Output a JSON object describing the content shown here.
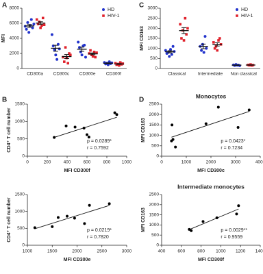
{
  "chart_data": [
    {
      "type": "dot",
      "panel_label": "A",
      "y_label": "MFI",
      "ylim": [
        0,
        8000
      ],
      "yticks": [
        0,
        2000,
        4000,
        6000,
        8000
      ],
      "legend": "upper right",
      "categories": [
        "CD300a",
        "CD300c",
        "CD300e",
        "CD300f"
      ],
      "series": [
        {
          "name": "HD",
          "color": "#2233cc",
          "values": [
            [
              5600,
              5200,
              6100,
              4800,
              5700,
              6500,
              5400,
              5900
            ],
            [
              4500,
              3000,
              2500,
              1800,
              1200,
              3200,
              2600
            ],
            [
              3500,
              2800,
              2200,
              1800,
              3000,
              3100,
              1500
            ],
            [
              800,
              600,
              700,
              500,
              900,
              650,
              750
            ]
          ]
        },
        {
          "name": "HIV-1",
          "color": "#e0202a",
          "values": [
            [
              6500,
              5900,
              6200,
              5400,
              5700,
              6700,
              5800
            ],
            [
              1500,
              900,
              2800,
              1400,
              700,
              2000,
              1800
            ],
            [
              2000,
              2400,
              1800,
              1600,
              2200,
              1500,
              2100
            ],
            [
              700,
              500,
              600,
              400,
              800,
              550,
              650
            ]
          ]
        }
      ]
    },
    {
      "type": "dot",
      "panel_label": "C",
      "y_label": "MFI CD163",
      "ylim": [
        0,
        3000
      ],
      "yticks": [
        0,
        500,
        1000,
        1500,
        2000,
        2500,
        3000
      ],
      "legend": "upper right",
      "categories": [
        "Classical",
        "Intermediate",
        "Non classical"
      ],
      "series": [
        {
          "name": "HD",
          "color": "#2233cc",
          "values": [
            [
              900,
              750,
              800,
              600,
              950,
              700,
              1100,
              850
            ],
            [
              1100,
              900,
              1200,
              800,
              1600,
              1000
            ],
            [
              180,
              150,
              200,
              160,
              170,
              140
            ]
          ]
        },
        {
          "name": "HIV-1",
          "color": "#e0202a",
          "values": [
            [
              2200,
              1500,
              1900,
              1400,
              2500,
              1700,
              2000
            ],
            [
              1300,
              1000,
              1100,
              900,
              1400,
              1500,
              1200
            ],
            [
              180,
              160,
              200,
              150,
              170
            ]
          ]
        }
      ]
    },
    {
      "type": "scatter",
      "panel_label": "B",
      "x_label": "MFI CD300f",
      "y_label": "CD4⁺ T cell number",
      "xlim": [
        0,
        1000
      ],
      "xticks": [
        0,
        200,
        400,
        600,
        800,
        1000
      ],
      "ylim": [
        0,
        1500
      ],
      "yticks": [
        0,
        500,
        1000,
        1500
      ],
      "x": [
        270,
        390,
        480,
        570,
        600,
        620,
        880,
        900
      ],
      "values": [
        540,
        870,
        840,
        810,
        620,
        550,
        1250,
        1200
      ],
      "color": "#000000",
      "annotations": [
        "p = 0.0289*",
        "r = 0.7592"
      ]
    },
    {
      "type": "scatter",
      "x_label": "MFI CD300e",
      "y_label": "CD4⁺ T cell number",
      "xlim": [
        1000,
        3000
      ],
      "xticks": [
        1000,
        1500,
        2000,
        2500,
        3000
      ],
      "ylim": [
        0,
        1500
      ],
      "yticks": [
        0,
        500,
        1000,
        1500
      ],
      "x": [
        1150,
        1500,
        1620,
        1800,
        1950,
        2150,
        2250,
        2650
      ],
      "values": [
        520,
        550,
        820,
        860,
        800,
        640,
        1180,
        1230
      ],
      "color": "#000000",
      "annotations": [
        "p = 0.0219*",
        "r = 0.7820"
      ]
    },
    {
      "type": "scatter",
      "panel_label": "D",
      "title": "Monocytes",
      "x_label": "MFI CD300c",
      "y_label": "MFI CD163",
      "xlim": [
        0,
        4000
      ],
      "xticks": [
        0,
        1000,
        2000,
        3000,
        4000
      ],
      "ylim": [
        0,
        2500
      ],
      "yticks": [
        0,
        500,
        1000,
        1500,
        2000,
        2500
      ],
      "x": [
        400,
        420,
        460,
        560,
        1800,
        2300,
        3100,
        3550
      ],
      "values": [
        730,
        1500,
        800,
        440,
        1560,
        2350,
        1380,
        2220
      ],
      "color": "#000000",
      "annotations": [
        "p = 0.0423*",
        "r = 0.7234"
      ]
    },
    {
      "type": "scatter",
      "title": "Intermediate monocytes",
      "x_label": "MFI CD300f",
      "y_label": "MFI CD163",
      "xlim": [
        400,
        1400
      ],
      "xticks": [
        400,
        600,
        800,
        1000,
        1200,
        1400
      ],
      "ylim": [
        0,
        2500
      ],
      "yticks": [
        0,
        500,
        1000,
        1500,
        2000,
        2500
      ],
      "x": [
        680,
        700,
        820,
        960,
        1160,
        1180
      ],
      "values": [
        780,
        720,
        1170,
        1350,
        1540,
        1950
      ],
      "color": "#000000",
      "annotations": [
        "p = 0.0029**",
        "r = 0.9559"
      ]
    }
  ]
}
